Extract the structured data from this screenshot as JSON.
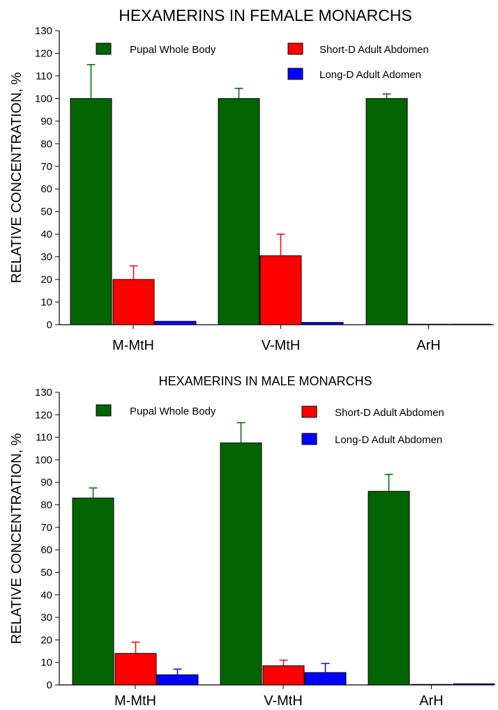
{
  "chart_data": [
    {
      "type": "bar",
      "title": "HEXAMERINS IN FEMALE MONARCHS",
      "ylabel": "RELATIVE CONCENTRATION, %",
      "xlabel": "",
      "categories": [
        "M-MtH",
        "V-MtH",
        "ArH"
      ],
      "ylim": [
        0,
        130
      ],
      "yticks": [
        0,
        10,
        20,
        30,
        40,
        50,
        60,
        70,
        80,
        90,
        100,
        110,
        120,
        130
      ],
      "grid": false,
      "legend_position": "top",
      "series": [
        {
          "name": "Pupal Whole Body",
          "color": "#006400",
          "values": [
            100,
            100,
            100
          ],
          "errors": [
            15,
            4.5,
            2
          ]
        },
        {
          "name": "Short-D Adult Abdomen",
          "color": "#ff0000",
          "values": [
            20,
            30.5,
            0
          ],
          "errors": [
            6,
            9.5,
            0
          ]
        },
        {
          "name": "Long-D Adult Adomen",
          "color": "#0000ff",
          "values": [
            1.5,
            1,
            0
          ],
          "errors": [
            0,
            0,
            0
          ]
        }
      ]
    },
    {
      "type": "bar",
      "title": "HEXAMERINS IN MALE MONARCHS",
      "ylabel": "RELATIVE CONCENTRATION, %",
      "xlabel": "",
      "categories": [
        "M-MtH",
        "V-MtH",
        "ArH"
      ],
      "ylim": [
        0,
        130
      ],
      "yticks": [
        0,
        10,
        20,
        30,
        40,
        50,
        60,
        70,
        80,
        90,
        100,
        110,
        120,
        130
      ],
      "grid": false,
      "legend_position": "top",
      "series": [
        {
          "name": "Pupal Whole Body",
          "color": "#006400",
          "values": [
            83,
            107.5,
            86
          ],
          "errors": [
            4.5,
            9,
            7.5
          ]
        },
        {
          "name": "Short-D Adult Abdomen",
          "color": "#ff0000",
          "values": [
            14,
            8.5,
            0
          ],
          "errors": [
            5,
            2.5,
            0
          ]
        },
        {
          "name": "Long-D Adult Abdomen",
          "color": "#0000ff",
          "values": [
            4.5,
            5.5,
            0.5
          ],
          "errors": [
            2.5,
            4,
            0
          ]
        }
      ]
    }
  ]
}
